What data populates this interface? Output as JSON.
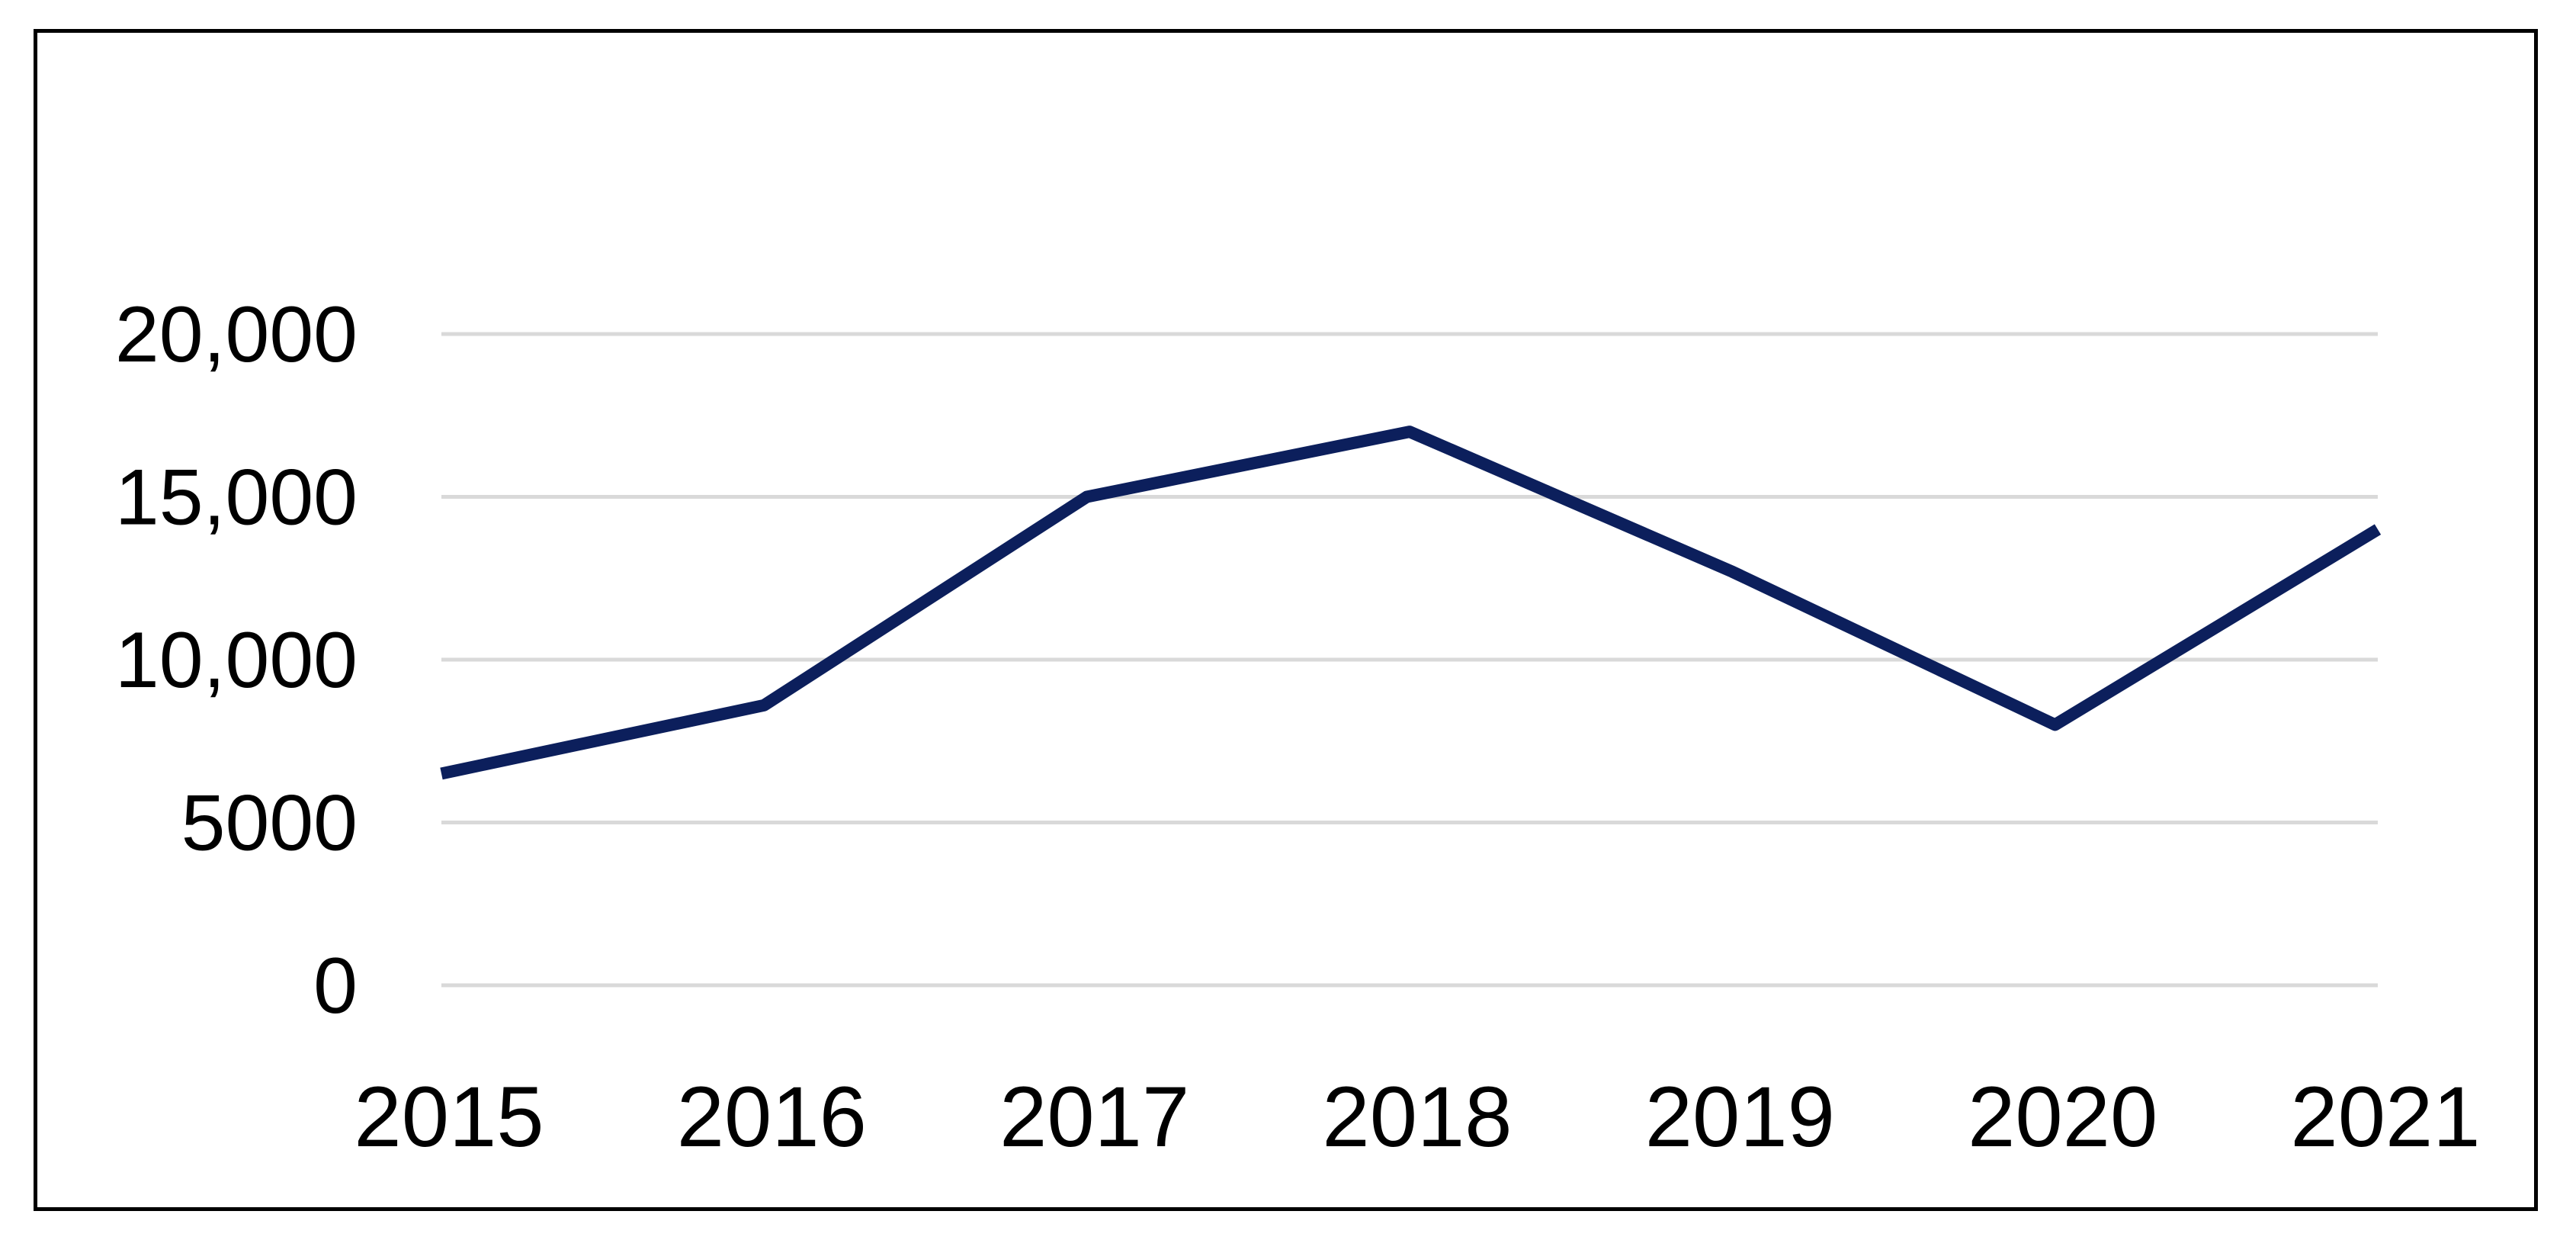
{
  "chart_data": {
    "type": "line",
    "title": "",
    "xlabel": "",
    "ylabel": "",
    "categories": [
      "2015",
      "2016",
      "2017",
      "2018",
      "2019",
      "2020",
      "2021"
    ],
    "series": [
      {
        "values": [
          6500,
          8600,
          15000,
          17000,
          12700,
          8000,
          14000
        ]
      }
    ],
    "ylim": [
      0,
      20000
    ],
    "yticks": [
      {
        "value": 0,
        "label": "0"
      },
      {
        "value": 5000,
        "label": "5000"
      },
      {
        "value": 10000,
        "label": "10,000"
      },
      {
        "value": 15000,
        "label": "15,000"
      },
      {
        "value": 20000,
        "label": "20,000"
      }
    ],
    "grid": "horizontal",
    "legend": "none",
    "colors": {
      "line": "#0c1f5c",
      "grid": "#d9d9d9",
      "text": "#000000",
      "frame": "#000000"
    }
  }
}
